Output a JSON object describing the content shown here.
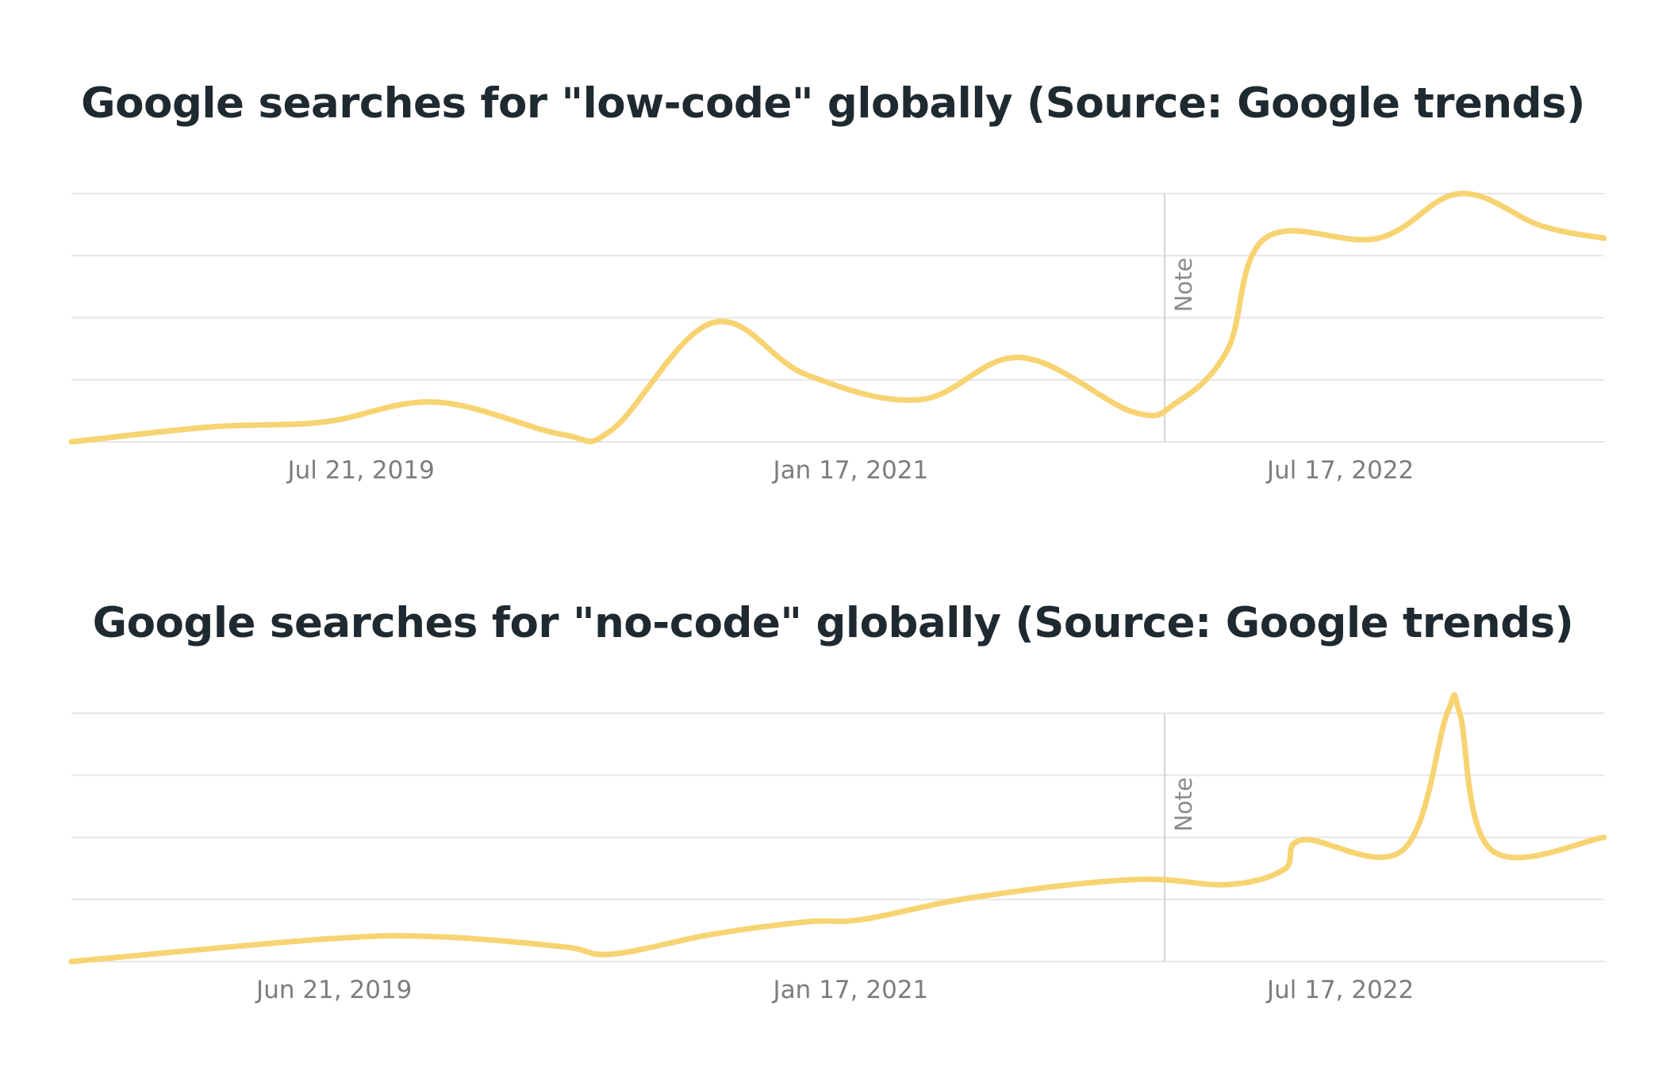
{
  "colors": {
    "series": "#f7d372",
    "title": "#1f2a30",
    "tick": "#7d7d7d",
    "grid": "#e6e6e6",
    "note": "#8a8a8a"
  },
  "chart_data": [
    {
      "type": "line",
      "title": "Google searches for \"low-code\" globally (Source: Google trends)",
      "xlabel": "",
      "ylabel": "",
      "xlim": [
        "2018-09-01",
        "2023-05-07"
      ],
      "ylim": [
        0,
        100
      ],
      "grid": true,
      "gridlines_y": [
        0,
        25,
        50,
        75,
        100
      ],
      "y_tick_labels_shown": false,
      "legend": "none",
      "x_ticks": [
        {
          "date": "2019-07-21",
          "label": "Jul 21, 2019"
        },
        {
          "date": "2021-01-17",
          "label": "Jan 17, 2021"
        },
        {
          "date": "2022-07-17",
          "label": "Jul 17, 2022"
        }
      ],
      "annotations": [
        {
          "type": "vertical-line",
          "date": "2022-01-02",
          "text": "Note"
        }
      ],
      "series": [
        {
          "x": [
            "2018-09-01",
            "2019-02-03",
            "2019-06-09",
            "2019-10-13",
            "2020-03-01",
            "2020-04-26",
            "2020-08-16",
            "2020-11-29",
            "2021-04-04",
            "2021-07-25",
            "2021-11-28",
            "2022-01-16",
            "2022-03-13",
            "2022-04-24",
            "2022-08-28",
            "2022-11-27",
            "2023-02-26",
            "2023-05-07"
          ],
          "y": [
            0,
            6,
            8,
            16,
            3,
            5,
            48,
            27,
            17,
            34,
            12,
            16,
            37,
            82,
            82,
            100,
            87,
            82
          ]
        }
      ]
    },
    {
      "type": "line",
      "title": "Google searches for \"no-code\" globally (Source: Google trends)",
      "xlabel": "",
      "ylabel": "",
      "xlim": [
        "2018-09-01",
        "2023-05-07"
      ],
      "ylim": [
        0,
        100
      ],
      "grid": true,
      "gridlines_y": [
        0,
        25,
        50,
        75,
        100
      ],
      "y_tick_labels_shown": false,
      "legend": "none",
      "x_ticks": [
        {
          "date": "2019-06-21",
          "label": "Jun 21, 2019"
        },
        {
          "date": "2021-01-17",
          "label": "Jan 17, 2021"
        },
        {
          "date": "2022-07-17",
          "label": "Jul 17, 2022"
        }
      ],
      "annotations": [
        {
          "type": "vertical-line",
          "date": "2022-01-02",
          "text": "Note"
        }
      ],
      "series": [
        {
          "x": [
            "2018-09-01",
            "2019-06-09",
            "2019-10-13",
            "2020-03-01",
            "2020-04-26",
            "2020-08-16",
            "2020-11-29",
            "2021-01-31",
            "2021-06-06",
            "2021-11-28",
            "2022-03-13",
            "2022-05-15",
            "2022-06-05",
            "2022-09-25",
            "2022-11-13",
            "2022-11-27",
            "2023-01-01",
            "2023-05-07"
          ],
          "y": [
            0,
            9,
            10,
            6,
            3,
            11,
            16,
            17,
            26,
            33,
            31,
            37,
            49,
            45,
            100,
            100,
            45,
            50
          ]
        }
      ]
    }
  ]
}
